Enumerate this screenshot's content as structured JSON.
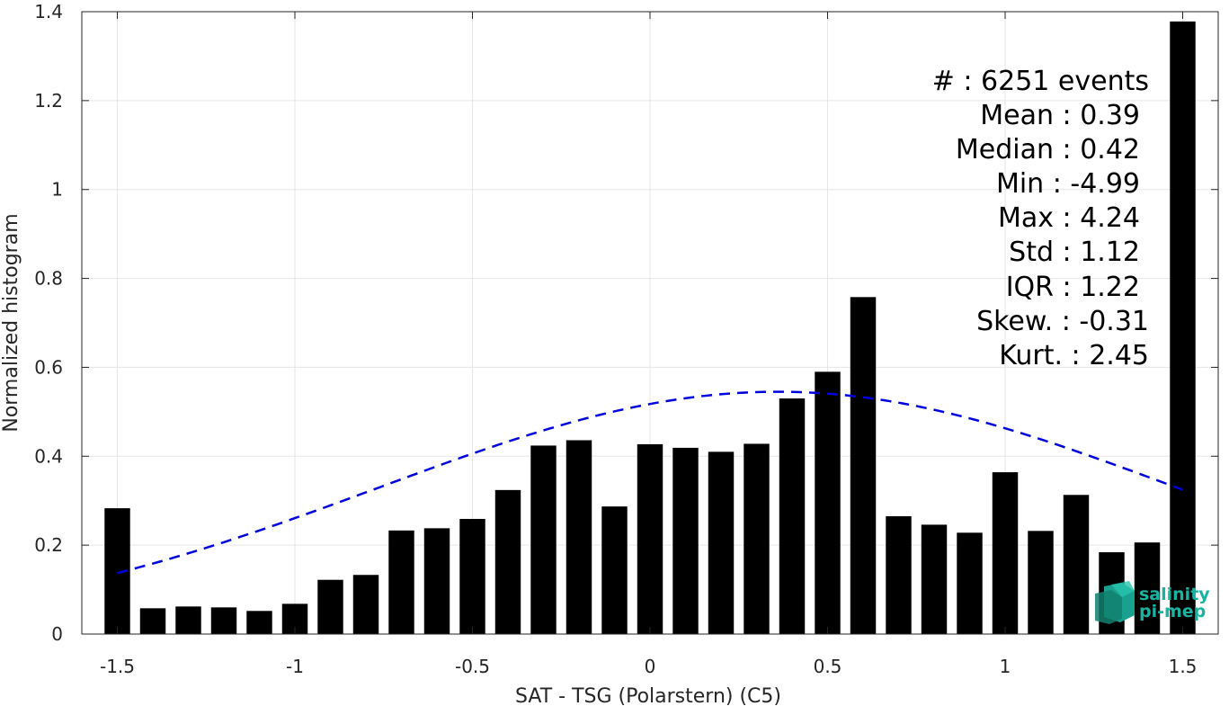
{
  "chart_data": {
    "type": "bar",
    "xlabel": "SAT - TSG (Polarstern) (C5)",
    "ylabel": "Normalized histogram",
    "xlim": [
      -1.6,
      1.6
    ],
    "ylim": [
      0,
      1.4
    ],
    "xticks": [
      -1.5,
      -1,
      -0.5,
      0,
      0.5,
      1,
      1.5
    ],
    "xtick_labels": [
      "-1.5",
      "-1",
      "-0.5",
      "0",
      "0.5",
      "1",
      "1.5"
    ],
    "yticks": [
      0,
      0.2,
      0.4,
      0.6,
      0.8,
      1,
      1.2,
      1.4
    ],
    "ytick_labels": [
      "0",
      "0.2",
      "0.4",
      "0.6",
      "0.8",
      "1",
      "1.2",
      "1.4"
    ],
    "grid": true,
    "bar_color": "#000000",
    "bar_centers": [
      -1.5,
      -1.4,
      -1.3,
      -1.2,
      -1.1,
      -1.0,
      -0.9,
      -0.8,
      -0.7,
      -0.6,
      -0.5,
      -0.4,
      -0.3,
      -0.2,
      -0.1,
      0.0,
      0.1,
      0.2,
      0.3,
      0.4,
      0.5,
      0.6,
      0.7,
      0.8,
      0.9,
      1.0,
      1.1,
      1.2,
      1.3,
      1.4,
      1.5
    ],
    "values": [
      0.283,
      0.058,
      0.062,
      0.06,
      0.052,
      0.068,
      0.122,
      0.133,
      0.233,
      0.238,
      0.259,
      0.324,
      0.424,
      0.436,
      0.287,
      0.427,
      0.419,
      0.41,
      0.428,
      0.53,
      0.59,
      0.758,
      0.265,
      0.246,
      0.228,
      0.364,
      0.232,
      0.313,
      0.184,
      0.206,
      1.378
    ],
    "fit_curve": {
      "type": "normal",
      "style": "dashed",
      "color": "#0000dd",
      "mean": 0.36,
      "std": 1.12,
      "peak": 0.545,
      "x_range": [
        -1.5,
        1.5
      ]
    },
    "annotations": [
      "#  : 6251 events",
      "Mean : 0.39",
      "Median : 0.42",
      "Min : -4.99",
      "Max : 4.24",
      "Std : 1.12",
      "IQR : 1.22",
      "Skew. : -0.31",
      "Kurt. : 2.45"
    ]
  },
  "logo": {
    "line1": "salinity",
    "line2": "pi-mep",
    "color": "#19b3a0",
    "icon": "cube-icon"
  }
}
